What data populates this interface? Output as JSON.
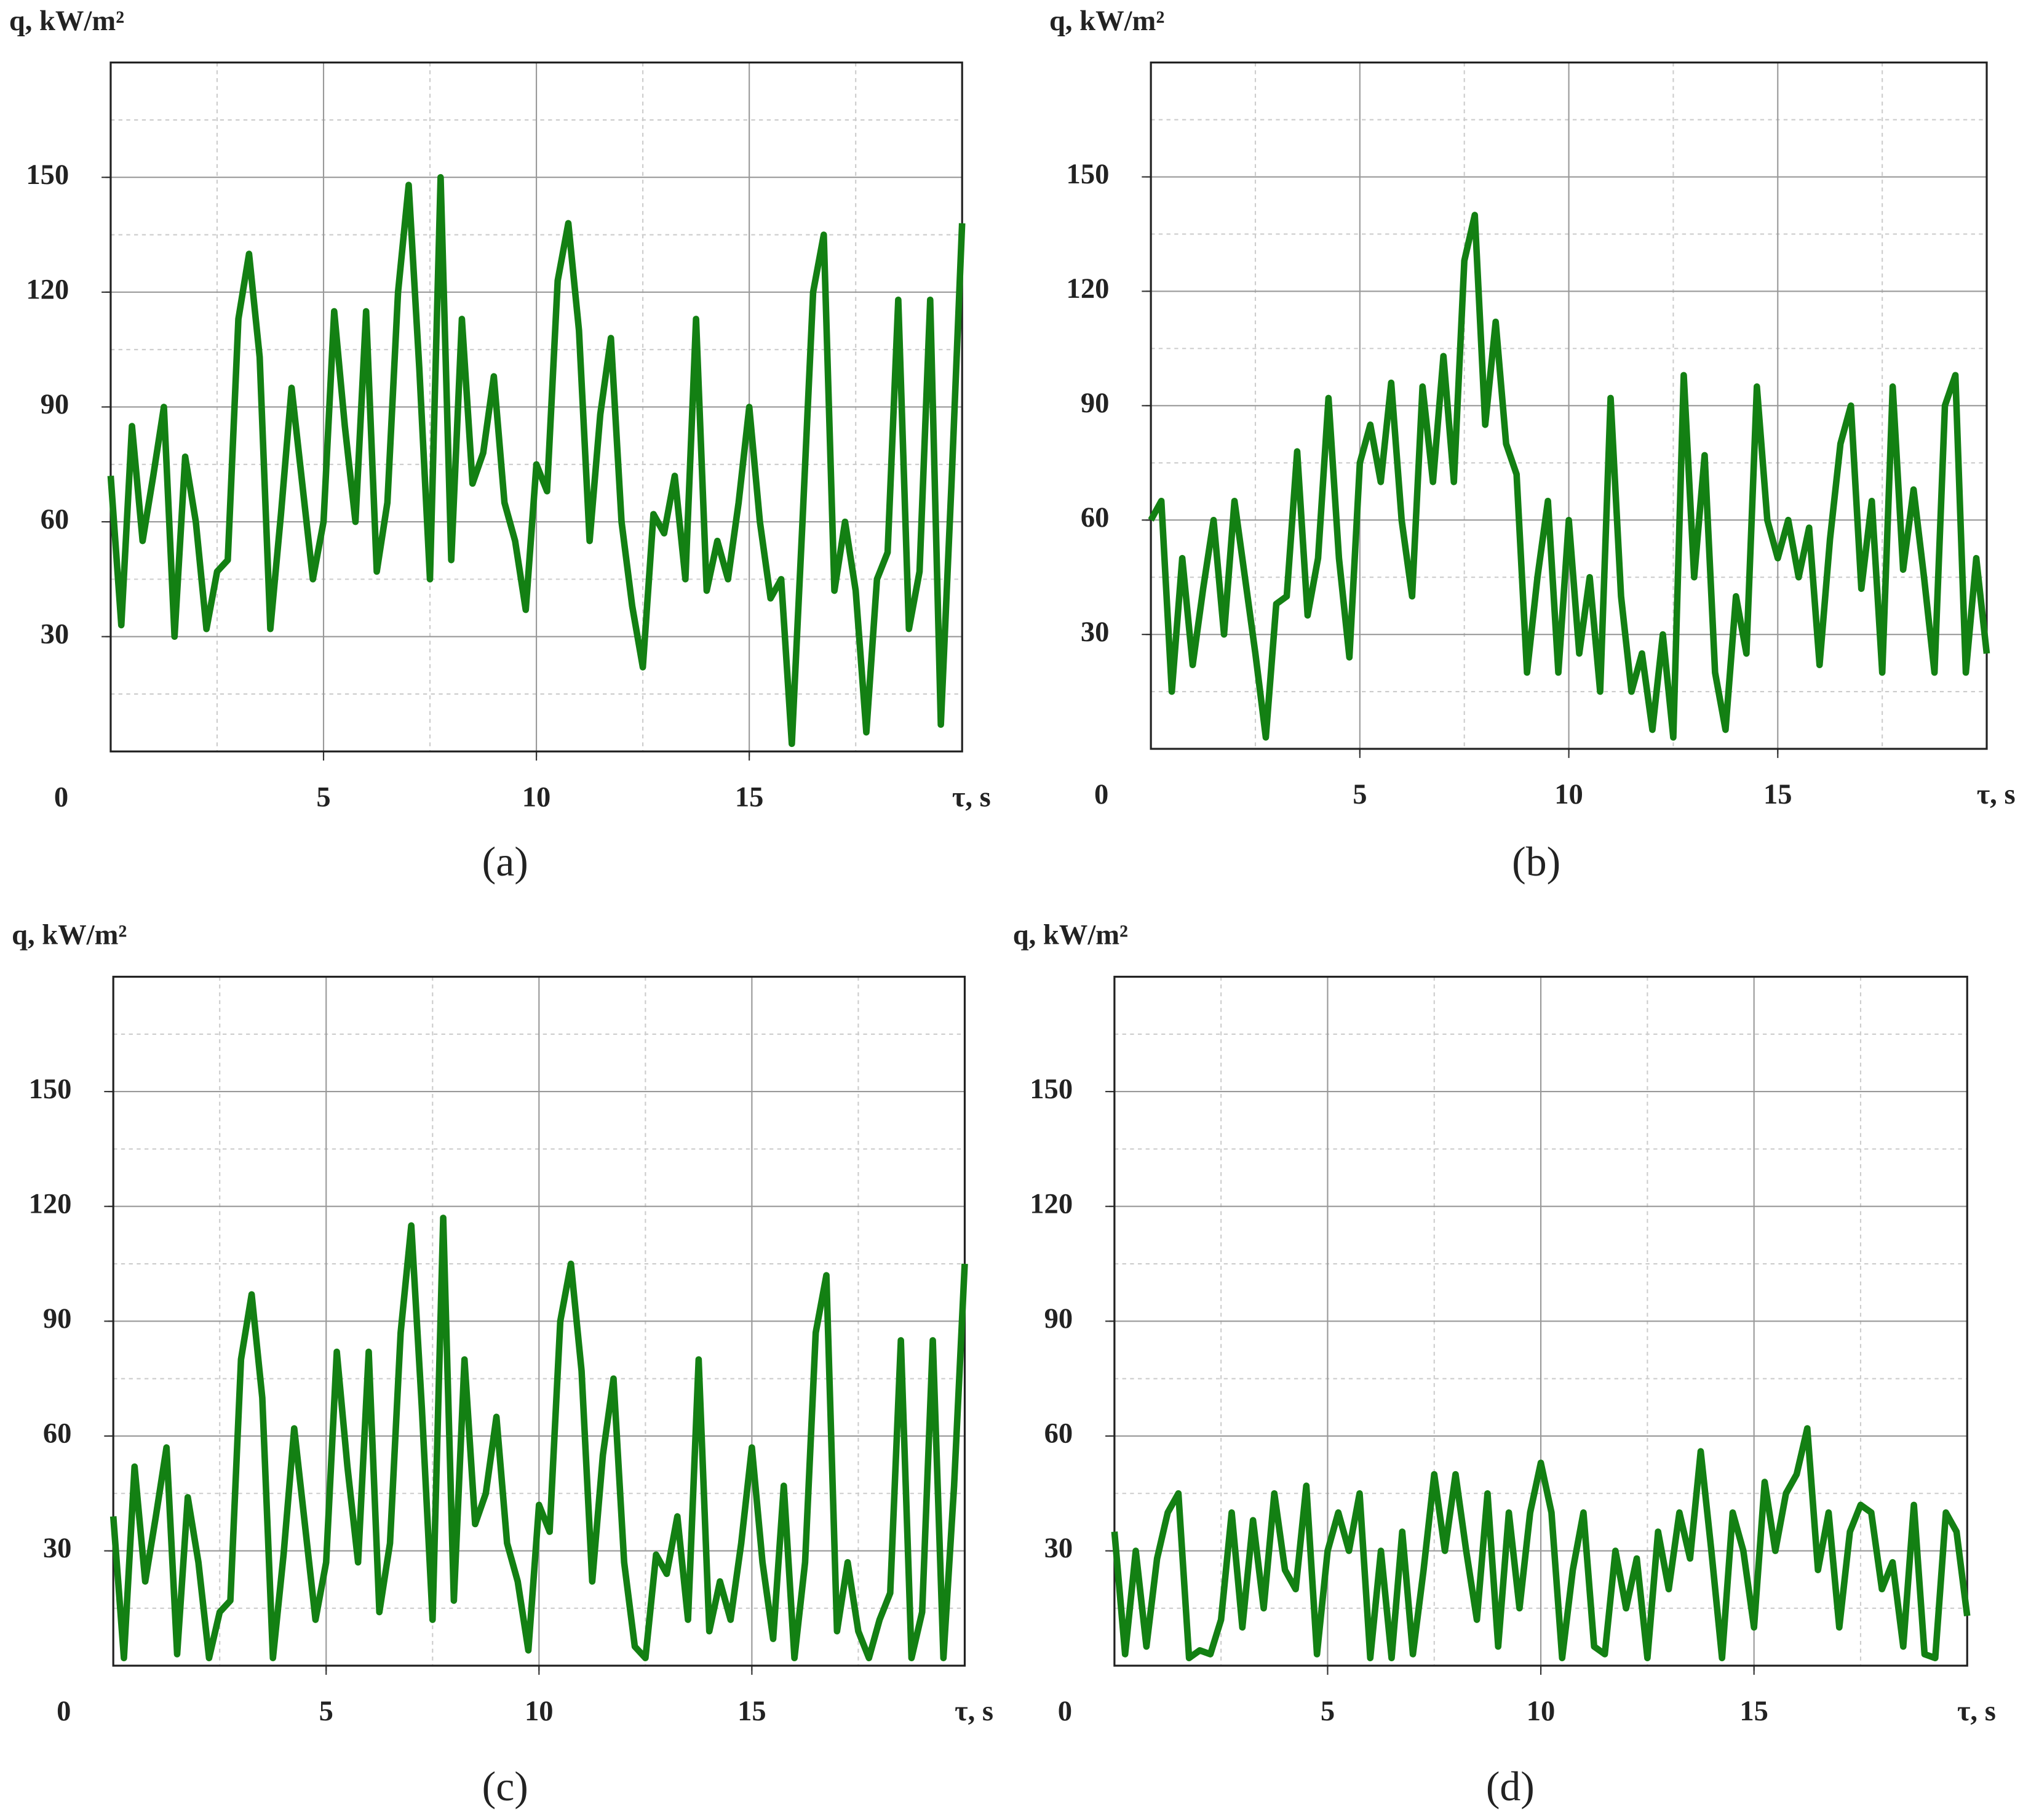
{
  "chart_data": [
    {
      "type": "line",
      "panel_label": "(a)",
      "ylabel": "q, kW/m²",
      "xlabel": "τ, s",
      "origin_label": "0",
      "color": "#138013",
      "grid": true,
      "xlim": [
        0,
        20
      ],
      "ylim": [
        0,
        180
      ],
      "xticks": [
        5,
        10,
        15
      ],
      "yticks": [
        30,
        60,
        90,
        120,
        150
      ],
      "x": [
        0,
        0.25,
        0.5,
        0.75,
        1,
        1.25,
        1.5,
        1.75,
        2,
        2.25,
        2.5,
        2.75,
        3,
        3.25,
        3.5,
        3.75,
        4,
        4.25,
        4.5,
        4.75,
        5,
        5.25,
        5.5,
        5.75,
        6,
        6.25,
        6.5,
        6.75,
        7,
        7.25,
        7.5,
        7.75,
        8,
        8.25,
        8.5,
        8.75,
        9,
        9.25,
        9.5,
        9.75,
        10,
        10.25,
        10.5,
        10.75,
        11,
        11.25,
        11.5,
        11.75,
        12,
        12.25,
        12.5,
        12.75,
        13,
        13.25,
        13.5,
        13.75,
        14,
        14.25,
        14.5,
        14.75,
        15,
        15.25,
        15.5,
        15.75,
        16,
        16.25,
        16.5,
        16.75,
        17,
        17.25,
        17.5,
        17.75,
        18,
        18.25,
        18.5,
        18.75,
        19,
        19.25,
        19.5,
        19.75,
        20
      ],
      "values": [
        72,
        33,
        85,
        55,
        72,
        90,
        30,
        77,
        60,
        32,
        47,
        50,
        113,
        130,
        103,
        32,
        62,
        95,
        70,
        45,
        60,
        115,
        85,
        60,
        115,
        47,
        65,
        120,
        148,
        100,
        45,
        150,
        50,
        113,
        70,
        78,
        98,
        65,
        55,
        37,
        75,
        68,
        123,
        138,
        110,
        55,
        88,
        108,
        60,
        38,
        22,
        62,
        57,
        72,
        45,
        113,
        42,
        55,
        45,
        65,
        90,
        60,
        40,
        45,
        2,
        60,
        120,
        135,
        42,
        60,
        42,
        5,
        45,
        52,
        118,
        32,
        47,
        118,
        7,
        70,
        138
      ]
    },
    {
      "type": "line",
      "panel_label": "(b)",
      "ylabel": "q, kW/m²",
      "xlabel": "τ, s",
      "origin_label": "0",
      "color": "#138013",
      "grid": true,
      "xlim": [
        0,
        20
      ],
      "ylim": [
        0,
        180
      ],
      "xticks": [
        5,
        10,
        15
      ],
      "yticks": [
        30,
        60,
        90,
        120,
        150
      ],
      "x": [
        0,
        0.25,
        0.5,
        0.75,
        1,
        1.25,
        1.5,
        1.75,
        2,
        2.25,
        2.5,
        2.75,
        3,
        3.25,
        3.5,
        3.75,
        4,
        4.25,
        4.5,
        4.75,
        5,
        5.25,
        5.5,
        5.75,
        6,
        6.25,
        6.5,
        6.75,
        7,
        7.25,
        7.5,
        7.75,
        8,
        8.25,
        8.5,
        8.75,
        9,
        9.25,
        9.5,
        9.75,
        10,
        10.25,
        10.5,
        10.75,
        11,
        11.25,
        11.5,
        11.75,
        12,
        12.25,
        12.5,
        12.75,
        13,
        13.25,
        13.5,
        13.75,
        14,
        14.25,
        14.5,
        14.75,
        15,
        15.25,
        15.5,
        15.75,
        16,
        16.25,
        16.5,
        16.75,
        17,
        17.25,
        17.5,
        17.75,
        18,
        18.25,
        18.5,
        18.75,
        19,
        19.25,
        19.5,
        19.75,
        20
      ],
      "values": [
        60,
        65,
        15,
        50,
        22,
        42,
        60,
        30,
        65,
        45,
        25,
        3,
        38,
        40,
        78,
        35,
        50,
        92,
        50,
        24,
        75,
        85,
        70,
        96,
        60,
        40,
        95,
        70,
        103,
        70,
        128,
        140,
        85,
        112,
        80,
        72,
        20,
        45,
        65,
        20,
        60,
        25,
        45,
        15,
        92,
        40,
        15,
        25,
        5,
        30,
        3,
        98,
        45,
        77,
        20,
        5,
        40,
        25,
        95,
        60,
        50,
        60,
        45,
        58,
        22,
        55,
        80,
        90,
        42,
        65,
        20,
        95,
        47,
        68,
        45,
        20,
        90,
        98,
        20,
        50,
        25
      ]
    },
    {
      "type": "line",
      "panel_label": "(c)",
      "ylabel": "q, kW/m²",
      "xlabel": "τ, s",
      "origin_label": "0",
      "color": "#138013",
      "grid": true,
      "xlim": [
        0,
        20
      ],
      "ylim": [
        0,
        180
      ],
      "xticks": [
        5,
        10,
        15
      ],
      "yticks": [
        30,
        60,
        90,
        120,
        150
      ],
      "x": [
        0,
        0.25,
        0.5,
        0.75,
        1,
        1.25,
        1.5,
        1.75,
        2,
        2.25,
        2.5,
        2.75,
        3,
        3.25,
        3.5,
        3.75,
        4,
        4.25,
        4.5,
        4.75,
        5,
        5.25,
        5.5,
        5.75,
        6,
        6.25,
        6.5,
        6.75,
        7,
        7.25,
        7.5,
        7.75,
        8,
        8.25,
        8.5,
        8.75,
        9,
        9.25,
        9.5,
        9.75,
        10,
        10.25,
        10.5,
        10.75,
        11,
        11.25,
        11.5,
        11.75,
        12,
        12.25,
        12.5,
        12.75,
        13,
        13.25,
        13.5,
        13.75,
        14,
        14.25,
        14.5,
        14.75,
        15,
        15.25,
        15.5,
        15.75,
        16,
        16.25,
        16.5,
        16.75,
        17,
        17.25,
        17.5,
        17.75,
        18,
        18.25,
        18.5,
        18.75,
        19,
        19.25,
        19.5,
        19.75,
        20
      ],
      "values": [
        39,
        2,
        52,
        22,
        39,
        57,
        3,
        44,
        27,
        2,
        14,
        17,
        80,
        97,
        70,
        2,
        29,
        62,
        37,
        12,
        27,
        82,
        52,
        27,
        82,
        14,
        32,
        87,
        115,
        67,
        12,
        117,
        17,
        80,
        37,
        45,
        65,
        32,
        22,
        4,
        42,
        35,
        90,
        105,
        77,
        22,
        55,
        75,
        27,
        5,
        2,
        29,
        24,
        39,
        12,
        80,
        9,
        22,
        12,
        32,
        57,
        27,
        7,
        47,
        2,
        27,
        87,
        102,
        9,
        27,
        9,
        2,
        12,
        19,
        85,
        2,
        14,
        85,
        2,
        47,
        105
      ]
    },
    {
      "type": "line",
      "panel_label": "(d)",
      "ylabel": "q, kW/m²",
      "xlabel": "τ, s",
      "origin_label": "0",
      "color": "#138013",
      "grid": true,
      "xlim": [
        0,
        20
      ],
      "ylim": [
        0,
        180
      ],
      "xticks": [
        5,
        10,
        15
      ],
      "yticks": [
        30,
        60,
        90,
        120,
        150
      ],
      "x": [
        0,
        0.25,
        0.5,
        0.75,
        1,
        1.25,
        1.5,
        1.75,
        2,
        2.25,
        2.5,
        2.75,
        3,
        3.25,
        3.5,
        3.75,
        4,
        4.25,
        4.5,
        4.75,
        5,
        5.25,
        5.5,
        5.75,
        6,
        6.25,
        6.5,
        6.75,
        7,
        7.25,
        7.5,
        7.75,
        8,
        8.25,
        8.5,
        8.75,
        9,
        9.25,
        9.5,
        9.75,
        10,
        10.25,
        10.5,
        10.75,
        11,
        11.25,
        11.5,
        11.75,
        12,
        12.25,
        12.5,
        12.75,
        13,
        13.25,
        13.5,
        13.75,
        14,
        14.25,
        14.5,
        14.75,
        15,
        15.25,
        15.5,
        15.75,
        16,
        16.25,
        16.5,
        16.75,
        17,
        17.25,
        17.5,
        17.75,
        18,
        18.25,
        18.5,
        18.75,
        19,
        19.25,
        19.5,
        19.75,
        20
      ],
      "values": [
        35,
        3,
        30,
        5,
        28,
        40,
        45,
        2,
        4,
        3,
        12,
        40,
        10,
        38,
        15,
        45,
        25,
        20,
        47,
        3,
        30,
        40,
        30,
        45,
        2,
        30,
        2,
        35,
        3,
        25,
        50,
        30,
        50,
        30,
        12,
        45,
        5,
        40,
        15,
        40,
        53,
        40,
        2,
        25,
        40,
        5,
        3,
        30,
        15,
        28,
        2,
        35,
        20,
        40,
        28,
        56,
        30,
        2,
        40,
        30,
        10,
        48,
        30,
        45,
        50,
        62,
        25,
        40,
        10,
        35,
        42,
        40,
        20,
        27,
        5,
        42,
        3,
        2,
        40,
        35,
        13
      ]
    }
  ]
}
